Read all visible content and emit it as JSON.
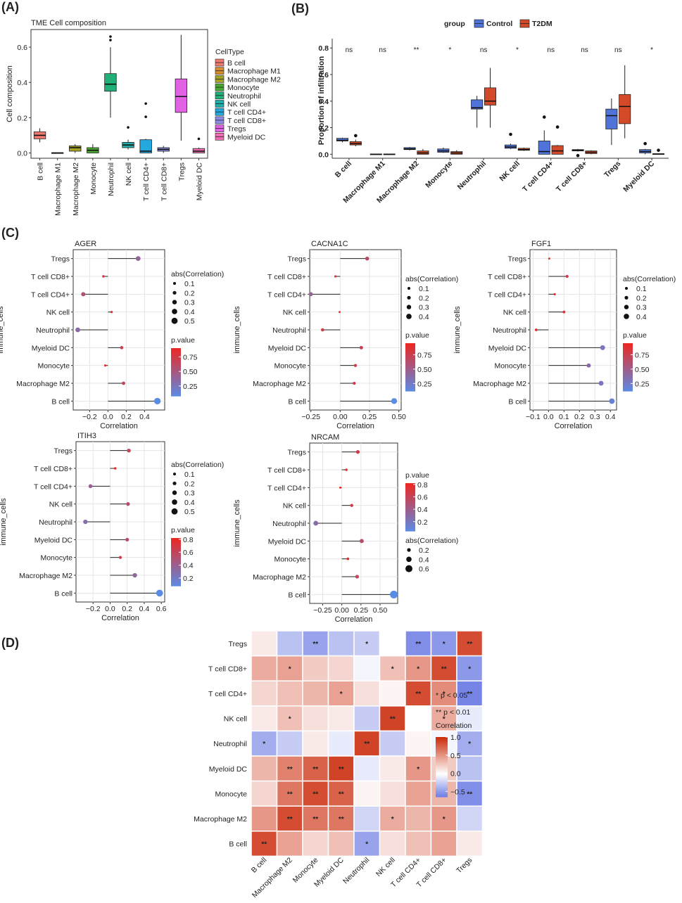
{
  "panels": {
    "A": "(A)",
    "B": "(B)",
    "C": "(C)",
    "D": "(D)"
  },
  "cell_types": [
    "B cell",
    "Macrophage M1",
    "Macrophage M2",
    "Monocyte",
    "Neutrophil",
    "NK cell",
    "T cell CD4+",
    "T cell CD8+",
    "Tregs",
    "Myeloid DC"
  ],
  "cell_colors": [
    "#f07a6f",
    "#d98c2e",
    "#a4a325",
    "#49a833",
    "#22b079",
    "#21aeaa",
    "#23a8e0",
    "#8c8be8",
    "#e163e3",
    "#f26cb3"
  ],
  "chart_data": [
    {
      "type": "box",
      "id": "A",
      "title": "TME Cell composition",
      "ylabel": "Cell composition",
      "ylim": [
        -0.03,
        0.7
      ],
      "yticks": [
        0.0,
        0.2,
        0.4,
        0.6
      ],
      "ytick_labels": [
        "0.0",
        "0.2",
        "0.4",
        "0.6"
      ],
      "legend_title": "CellType",
      "boxes": [
        {
          "cat": "B cell",
          "color_idx": 0,
          "lo": 0.06,
          "q1": 0.08,
          "med": 0.1,
          "q3": 0.12,
          "hi": 0.14,
          "out": []
        },
        {
          "cat": "Macrophage M1",
          "color_idx": 1,
          "lo": 0.0,
          "q1": 0.0,
          "med": 0.0,
          "q3": 0.001,
          "hi": 0.001,
          "out": []
        },
        {
          "cat": "Macrophage M2",
          "color_idx": 2,
          "lo": 0.0,
          "q1": 0.01,
          "med": 0.03,
          "q3": 0.04,
          "hi": 0.05,
          "out": []
        },
        {
          "cat": "Monocyte",
          "color_idx": 3,
          "lo": 0.0,
          "q1": 0.0,
          "med": 0.015,
          "q3": 0.03,
          "hi": 0.05,
          "out": []
        },
        {
          "cat": "Neutrophil",
          "color_idx": 4,
          "lo": 0.2,
          "q1": 0.35,
          "med": 0.39,
          "q3": 0.45,
          "hi": 0.6,
          "out": [
            0.64,
            0.66
          ]
        },
        {
          "cat": "NK cell",
          "color_idx": 5,
          "lo": 0.02,
          "q1": 0.03,
          "med": 0.045,
          "q3": 0.06,
          "hi": 0.075,
          "out": [
            0.145
          ]
        },
        {
          "cat": "T cell CD4+",
          "color_idx": 6,
          "lo": 0.0,
          "q1": 0.0,
          "med": 0.01,
          "q3": 0.075,
          "hi": 0.08,
          "out": [
            0.205,
            0.28
          ]
        },
        {
          "cat": "T cell CD8+",
          "color_idx": 7,
          "lo": 0.0,
          "q1": 0.01,
          "med": 0.02,
          "q3": 0.03,
          "hi": 0.04,
          "out": []
        },
        {
          "cat": "Tregs",
          "color_idx": 8,
          "lo": 0.07,
          "q1": 0.23,
          "med": 0.32,
          "q3": 0.42,
          "hi": 0.67,
          "out": []
        },
        {
          "cat": "Myeloid DC",
          "color_idx": 9,
          "lo": 0.0,
          "q1": 0.0,
          "med": 0.01,
          "q3": 0.025,
          "hi": 0.03,
          "out": [
            0.08
          ]
        }
      ],
      "xlabels": [
        "B cell",
        "Macrophage M1",
        "Macrophage M2",
        "Monocyte",
        "Neutrophil",
        "NK cell",
        "T cell CD4+",
        "T cell CD8+",
        "Tregs",
        "Myeloid DC"
      ]
    },
    {
      "type": "grouped_box",
      "id": "B",
      "ylabel": "Proportion of infiltration",
      "ylim": [
        -0.03,
        0.87
      ],
      "yticks": [
        0.0,
        0.2,
        0.4,
        0.6,
        0.8
      ],
      "ytick_labels": [
        "0.0",
        "0.2",
        "0.4",
        "0.6",
        "0.8"
      ],
      "legend_title": "group",
      "groups": [
        {
          "name": "Control",
          "color": "#4f74d9"
        },
        {
          "name": "T2DM",
          "color": "#d34a28"
        }
      ],
      "categories": [
        "B cell",
        "Macrophage M1",
        "Macrophage M2",
        "Monocyte",
        "Neutrophil",
        "NK cell",
        "T cell CD4+",
        "T cell CD8+",
        "Tregs",
        "Myeloid DC"
      ],
      "significance": [
        "ns",
        "ns",
        "**",
        "*",
        "ns",
        "*",
        "ns",
        "ns",
        "ns",
        "*"
      ],
      "boxes": [
        [
          {
            "lo": 0.09,
            "q1": 0.1,
            "med": 0.105,
            "q3": 0.12,
            "hi": 0.125,
            "out": []
          },
          {
            "lo": 0.06,
            "q1": 0.07,
            "med": 0.08,
            "q3": 0.095,
            "hi": 0.11,
            "out": [
              0.14
            ]
          }
        ],
        [
          {
            "lo": 0.0,
            "q1": 0.0,
            "med": 0.0,
            "q3": 0.002,
            "hi": 0.002,
            "out": []
          },
          {
            "lo": 0.0,
            "q1": 0.0,
            "med": 0.0,
            "q3": 0.002,
            "hi": 0.002,
            "out": []
          }
        ],
        [
          {
            "lo": 0.03,
            "q1": 0.035,
            "med": 0.04,
            "q3": 0.05,
            "hi": 0.055,
            "out": []
          },
          {
            "lo": 0.0,
            "q1": 0.0,
            "med": 0.01,
            "q3": 0.025,
            "hi": 0.04,
            "out": []
          }
        ],
        [
          {
            "lo": 0.01,
            "q1": 0.015,
            "med": 0.025,
            "q3": 0.04,
            "hi": 0.05,
            "out": []
          },
          {
            "lo": 0.0,
            "q1": 0.0,
            "med": 0.01,
            "q3": 0.02,
            "hi": 0.03,
            "out": []
          }
        ],
        [
          {
            "lo": 0.2,
            "q1": 0.34,
            "med": 0.35,
            "q3": 0.41,
            "hi": 0.44,
            "out": []
          },
          {
            "lo": 0.2,
            "q1": 0.37,
            "med": 0.4,
            "q3": 0.5,
            "hi": 0.65,
            "out": []
          }
        ],
        [
          {
            "lo": 0.04,
            "q1": 0.045,
            "med": 0.055,
            "q3": 0.07,
            "hi": 0.08,
            "out": [
              0.15
            ]
          },
          {
            "lo": 0.025,
            "q1": 0.03,
            "med": 0.035,
            "q3": 0.045,
            "hi": 0.05,
            "out": []
          }
        ],
        [
          {
            "lo": 0.0,
            "q1": 0.0,
            "med": 0.02,
            "q3": 0.1,
            "hi": 0.18,
            "out": [
              0.28
            ]
          },
          {
            "lo": 0.0,
            "q1": 0.0,
            "med": 0.025,
            "q3": 0.065,
            "hi": 0.07,
            "out": [
              0.205
            ]
          }
        ],
        [
          {
            "lo": 0.02,
            "q1": 0.025,
            "med": 0.03,
            "q3": 0.035,
            "hi": 0.04,
            "out": [
              -0.01
            ]
          },
          {
            "lo": 0.0,
            "q1": 0.005,
            "med": 0.015,
            "q3": 0.025,
            "hi": 0.03,
            "out": []
          }
        ],
        [
          {
            "lo": 0.07,
            "q1": 0.19,
            "med": 0.29,
            "q3": 0.34,
            "hi": 0.42,
            "out": []
          },
          {
            "lo": 0.12,
            "q1": 0.23,
            "med": 0.36,
            "q3": 0.45,
            "hi": 0.67,
            "out": []
          }
        ],
        [
          {
            "lo": 0.0,
            "q1": 0.01,
            "med": 0.02,
            "q3": 0.035,
            "hi": 0.04,
            "out": [
              0.08
            ]
          },
          {
            "lo": 0.0,
            "q1": 0.0,
            "med": 0.002,
            "q3": 0.004,
            "hi": 0.004,
            "out": [
              0.03
            ]
          }
        ]
      ]
    },
    {
      "type": "lollipop",
      "id": "C1",
      "title": "AGER",
      "ylabel": "immune_cells",
      "xlabel": "Correlation",
      "xlim": [
        -0.38,
        0.62
      ],
      "xticks": [
        -0.2,
        0.0,
        0.2,
        0.4
      ],
      "xtick_labels": [
        "−0.2",
        "0.0",
        "0.2",
        "0.4"
      ],
      "cells": [
        "Tregs",
        "T cell CD8+",
        "T cell CD4+",
        "NK cell",
        "Neutrophil",
        "Myeloid DC",
        "Monocyte",
        "Macrophage M2",
        "B cell"
      ],
      "values": [
        0.33,
        -0.05,
        -0.27,
        0.04,
        -0.33,
        0.15,
        -0.03,
        0.17,
        0.54
      ],
      "pvalues": [
        0.4,
        0.82,
        0.55,
        0.85,
        0.35,
        0.72,
        0.9,
        0.7,
        0.08
      ],
      "size_title": "abs(Correlation)",
      "size_labels": [
        "0.1",
        "0.2",
        "0.3",
        "0.4",
        "0.5"
      ],
      "color_title": "p.value",
      "color_range": [
        0.08,
        0.9
      ],
      "color_labels": [
        "0.75",
        "0.50",
        "0.25"
      ],
      "color_ticks": [
        0.75,
        0.5,
        0.25
      ]
    },
    {
      "type": "lollipop",
      "id": "C2",
      "title": "CACNA1C",
      "ylabel": "immune_cells",
      "xlabel": "Correlation",
      "xlim": [
        -0.26,
        0.52
      ],
      "xticks": [
        -0.25,
        0.0,
        0.25,
        0.5
      ],
      "xtick_labels": [
        "−0.25",
        "0.00",
        "0.25",
        "0.50"
      ],
      "cells": [
        "Tregs",
        "T cell CD8+",
        "T cell CD4+",
        "NK cell",
        "Neutrophil",
        "Myeloid DC",
        "Monocyte",
        "Macrophage M2",
        "B cell"
      ],
      "values": [
        0.23,
        -0.04,
        -0.25,
        -0.005,
        -0.15,
        0.18,
        0.13,
        0.12,
        0.46
      ],
      "pvalues": [
        0.7,
        0.85,
        0.45,
        0.95,
        0.78,
        0.75,
        0.78,
        0.8,
        0.12
      ],
      "size_title": "abs(Correlation)",
      "size_labels": [
        "0.1",
        "0.2",
        "0.3",
        "0.4"
      ],
      "color_title": "p.value",
      "color_range": [
        0.12,
        0.95
      ],
      "color_labels": [
        "0.75",
        "0.50",
        "0.25"
      ],
      "color_ticks": [
        0.75,
        0.5,
        0.25
      ]
    },
    {
      "type": "lollipop",
      "id": "C3",
      "title": "FGF1",
      "ylabel": "immune_cells",
      "xlabel": "Correlation",
      "xlim": [
        -0.12,
        0.44
      ],
      "xticks": [
        -0.1,
        0.0,
        0.1,
        0.2,
        0.3,
        0.4
      ],
      "xtick_labels": [
        "−0.1",
        "0.0",
        "0.1",
        "0.2",
        "0.3",
        "0.4"
      ],
      "cells": [
        "Tregs",
        "T cell CD8+",
        "T cell CD4+",
        "NK cell",
        "Neutrophil",
        "Myeloid DC",
        "Monocyte",
        "Macrophage M2",
        "B cell"
      ],
      "values": [
        0.005,
        0.12,
        0.04,
        0.1,
        -0.08,
        0.35,
        0.26,
        0.34,
        0.41
      ],
      "pvalues": [
        0.95,
        0.8,
        0.9,
        0.8,
        0.85,
        0.3,
        0.4,
        0.3,
        0.2
      ],
      "size_title": "abs(Correlation)",
      "size_labels": [
        "0.1",
        "0.2",
        "0.3",
        "0.4"
      ],
      "color_title": "p.value",
      "color_range": [
        0.12,
        0.95
      ],
      "color_labels": [
        "0.75",
        "0.50",
        "0.25"
      ],
      "color_ticks": [
        0.75,
        0.5,
        0.25
      ]
    },
    {
      "type": "lollipop",
      "id": "C4",
      "title": "ITIH3",
      "ylabel": "immune_cells",
      "xlabel": "Correlation",
      "xlim": [
        -0.4,
        0.64
      ],
      "xticks": [
        -0.2,
        0.0,
        0.2,
        0.4,
        0.6
      ],
      "xtick_labels": [
        "−0.2",
        "0.0",
        "0.2",
        "0.4",
        "0.6"
      ],
      "cells": [
        "Tregs",
        "T cell CD8+",
        "T cell CD4+",
        "NK cell",
        "Neutrophil",
        "Myeloid DC",
        "Monocyte",
        "Macrophage M2",
        "B cell"
      ],
      "values": [
        0.22,
        0.06,
        -0.23,
        0.21,
        -0.29,
        0.2,
        0.12,
        0.29,
        0.58
      ],
      "pvalues": [
        0.6,
        0.8,
        0.4,
        0.55,
        0.3,
        0.55,
        0.7,
        0.35,
        0.08
      ],
      "size_title": "abs(Correlation)",
      "size_labels": [
        "0.1",
        "0.2",
        "0.3",
        "0.4",
        "0.5"
      ],
      "color_title": "p.value",
      "color_range": [
        0.08,
        0.82
      ],
      "color_labels": [
        "0.8",
        "0.6",
        "0.4",
        "0.2"
      ],
      "color_ticks": [
        0.8,
        0.6,
        0.4,
        0.2
      ]
    },
    {
      "type": "lollipop",
      "id": "C5",
      "title": "NRCAM",
      "ylabel": "immune_cells",
      "xlabel": "Correlation",
      "xlim": [
        -0.42,
        0.73
      ],
      "xticks": [
        -0.25,
        0.0,
        0.25,
        0.5
      ],
      "xtick_labels": [
        "−0.25",
        "0.00",
        "0.25",
        "0.50"
      ],
      "cells": [
        "Tregs",
        "T cell CD8+",
        "T cell CD4+",
        "NK cell",
        "Neutrophil",
        "Myeloid DC",
        "Monocyte",
        "Macrophage M2",
        "B cell"
      ],
      "values": [
        0.21,
        0.06,
        -0.02,
        0.13,
        -0.34,
        0.26,
        0.08,
        0.2,
        0.68
      ],
      "pvalues": [
        0.65,
        0.78,
        0.8,
        0.7,
        0.3,
        0.55,
        0.78,
        0.6,
        0.05
      ],
      "size_title": "abs(Correlation)",
      "size_labels": [
        "0.2",
        "0.4",
        "0.6"
      ],
      "color_title": "p.value",
      "color_range": [
        0.05,
        0.82
      ],
      "color_labels": [
        "0.8",
        "0.6",
        "0.4",
        "0.2"
      ],
      "color_ticks": [
        0.8,
        0.6,
        0.4,
        0.2
      ]
    },
    {
      "type": "heatmap",
      "id": "D",
      "rows": [
        "Tregs",
        "T cell CD8+",
        "T cell CD4+",
        "NK cell",
        "Neutrophil",
        "Myeloid DC",
        "Monocyte",
        "Macrophage M2",
        "B cell"
      ],
      "cols": [
        "B cell",
        "Macrophage M2",
        "Monocyte",
        "Myeloid DC",
        "Neutrophil",
        "NK cell",
        "T cell CD4+",
        "T cell CD8+",
        "Tregs"
      ],
      "values": [
        [
          0.1,
          -0.3,
          -0.45,
          -0.3,
          -0.25,
          0.0,
          -0.55,
          -0.5,
          0.85
        ],
        [
          0.4,
          0.45,
          0.25,
          0.2,
          -0.05,
          0.3,
          0.5,
          0.85,
          -0.5
        ],
        [
          0.2,
          0.3,
          0.35,
          0.45,
          0.15,
          0.05,
          0.85,
          0.55,
          -0.6
        ],
        [
          0.1,
          0.3,
          0.15,
          0.1,
          -0.25,
          0.9,
          0.0,
          0.4,
          -0.1
        ],
        [
          -0.4,
          -0.25,
          0.1,
          -0.1,
          0.9,
          -0.25,
          0.05,
          -0.05,
          -0.4
        ],
        [
          0.35,
          0.6,
          0.75,
          0.9,
          -0.1,
          0.1,
          0.5,
          0.25,
          -0.3
        ],
        [
          0.2,
          0.65,
          0.85,
          0.75,
          0.05,
          0.15,
          0.45,
          0.35,
          -0.55
        ],
        [
          0.5,
          0.85,
          0.65,
          0.65,
          -0.2,
          0.4,
          0.35,
          0.5,
          -0.2
        ],
        [
          0.85,
          0.45,
          0.2,
          0.3,
          -0.45,
          0.15,
          0.3,
          0.45,
          0.1
        ]
      ],
      "stars": [
        [
          "",
          "",
          "**",
          "",
          "*",
          "",
          "**",
          "*",
          "**"
        ],
        [
          "",
          "*",
          "",
          "",
          "",
          "*",
          "*",
          "**",
          "*"
        ],
        [
          "",
          "",
          "",
          "*",
          "",
          "",
          "**",
          "*",
          "**"
        ],
        [
          "",
          "*",
          "",
          "",
          "",
          "**",
          "",
          "*",
          ""
        ],
        [
          "*",
          "",
          "",
          "",
          "**",
          "",
          "",
          "",
          "*"
        ],
        [
          "",
          "**",
          "**",
          "**",
          "",
          "",
          "*",
          "",
          ""
        ],
        [
          "",
          "**",
          "**",
          "**",
          "",
          "",
          "",
          "",
          "**"
        ],
        [
          "",
          "**",
          "**",
          "**",
          "",
          "*",
          "",
          "*",
          ""
        ],
        [
          "**",
          "",
          "",
          "",
          "*",
          "",
          "",
          "",
          ""
        ]
      ],
      "legend_sig": [
        "* p < 0.05",
        "** p < 0.01"
      ],
      "legend_title": "Correlation",
      "legend_ticks": [
        1.0,
        0.5,
        0.0,
        -0.5
      ],
      "legend_labels": [
        "1.0",
        "0.5",
        "0.0",
        "−0.5"
      ],
      "range": [
        -0.65,
        1.0
      ]
    }
  ]
}
